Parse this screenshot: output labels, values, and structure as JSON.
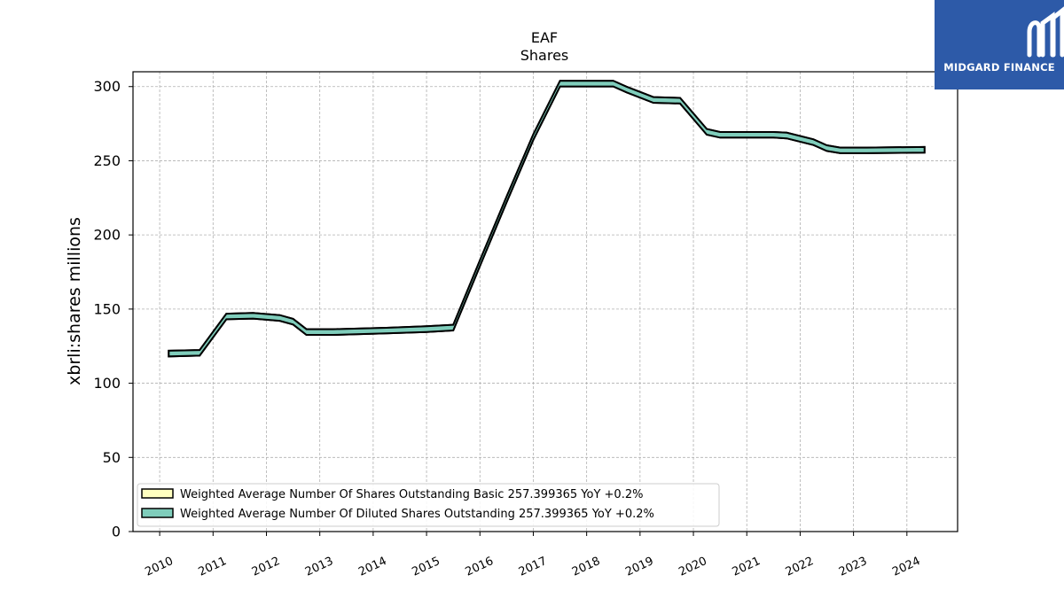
{
  "brand": {
    "name": "MIDGARD FINANCE",
    "color": "#2d5aa8",
    "icon": "midgard-logo-icon"
  },
  "chart_data": {
    "type": "line",
    "title": "EAF",
    "subtitle": "Shares",
    "xlabel": "",
    "ylabel": "xbrli:shares millions",
    "ylim": [
      0,
      310
    ],
    "yticks": [
      0,
      50,
      100,
      150,
      200,
      250,
      300
    ],
    "xlim": [
      2009.5,
      2024.95
    ],
    "xticks": [
      "2010",
      "2011",
      "2012",
      "2013",
      "2014",
      "2015",
      "2016",
      "2017",
      "2018",
      "2019",
      "2020",
      "2021",
      "2022",
      "2023",
      "2024"
    ],
    "grid": true,
    "legend_position": "lower-left",
    "series": [
      {
        "name": "Weighted Average Number Of Shares Outstanding Basic  257.399365 YoY +0.2%",
        "color": "#ffffc0",
        "x": [
          2010.17,
          2010.75,
          2011.25,
          2011.75,
          2012.25,
          2012.5,
          2012.75,
          2013.25,
          2014.25,
          2015.0,
          2015.5,
          2016.0,
          2016.5,
          2017.0,
          2017.5,
          2018.0,
          2018.5,
          2018.75,
          2019.25,
          2019.75,
          2020.25,
          2020.5,
          2021.0,
          2021.5,
          2021.75,
          2022.25,
          2022.5,
          2022.75,
          2023.25,
          2024.33
        ],
        "y": [
          120,
          120.5,
          145,
          145.5,
          144,
          141.5,
          134.5,
          134.5,
          135.5,
          136.5,
          137.5,
          181,
          224,
          266,
          302,
          302,
          302,
          298,
          291,
          290.5,
          269.5,
          267.5,
          267.5,
          267.5,
          267,
          262.5,
          258.5,
          257,
          257,
          257.4
        ]
      },
      {
        "name": "Weighted Average Number Of Diluted Shares Outstanding  257.399365 YoY +0.2%",
        "color": "#7fcdbb",
        "x": [
          2010.17,
          2010.75,
          2011.25,
          2011.75,
          2012.25,
          2012.5,
          2012.75,
          2013.25,
          2014.25,
          2015.0,
          2015.5,
          2016.0,
          2016.5,
          2017.0,
          2017.5,
          2018.0,
          2018.5,
          2018.75,
          2019.25,
          2019.75,
          2020.25,
          2020.5,
          2021.0,
          2021.5,
          2021.75,
          2022.25,
          2022.5,
          2022.75,
          2023.25,
          2024.33
        ],
        "y": [
          120,
          120.5,
          145,
          145.5,
          144,
          141.5,
          134.5,
          134.5,
          135.5,
          136.5,
          137.5,
          181,
          224,
          266,
          302,
          302,
          302,
          298,
          291,
          290.5,
          269.5,
          267.5,
          267.5,
          267.5,
          267,
          262.5,
          258.5,
          257,
          257,
          257.4
        ]
      }
    ]
  }
}
